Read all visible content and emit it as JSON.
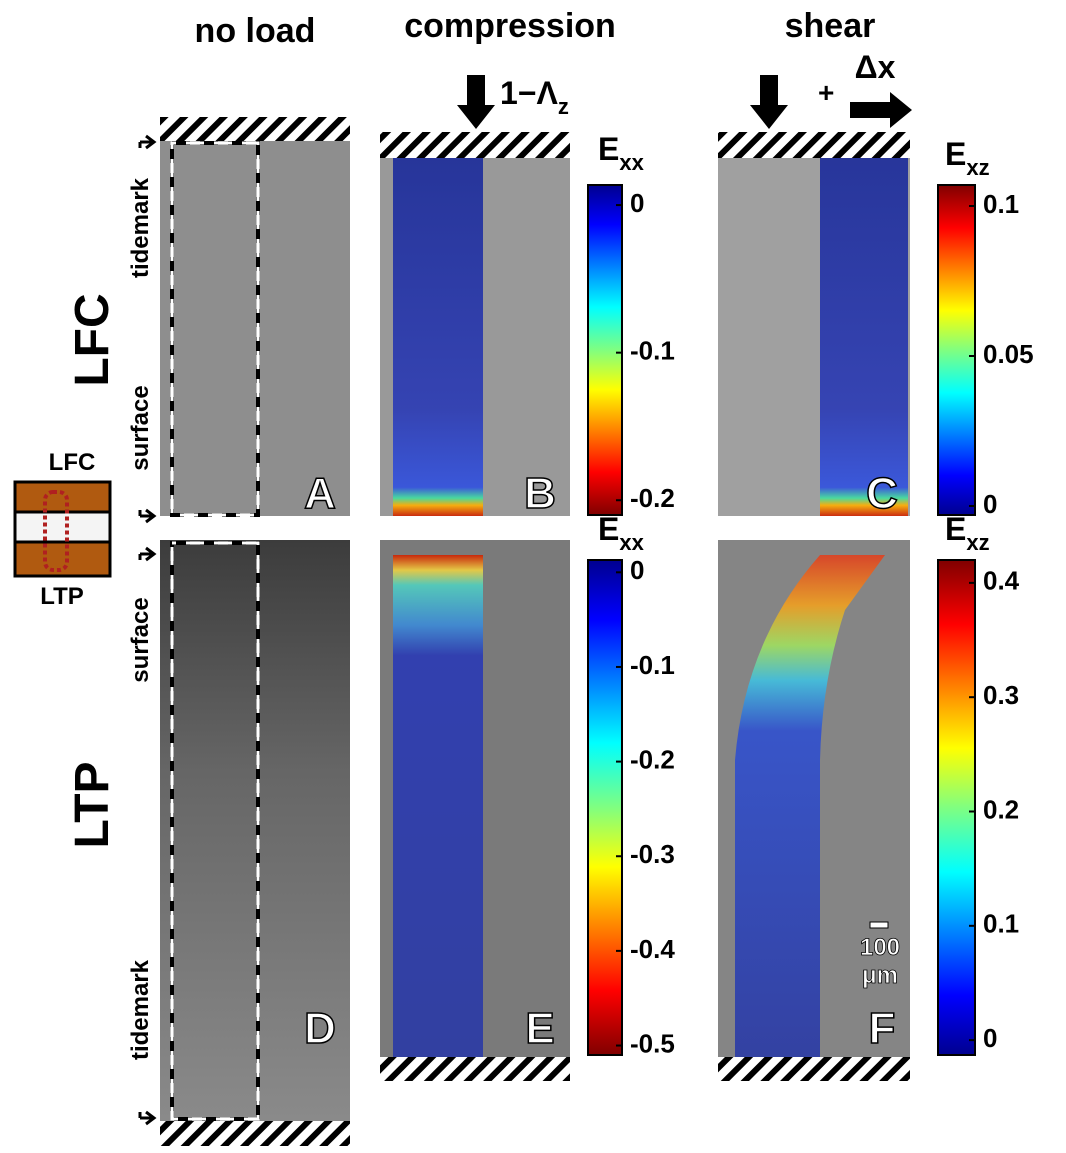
{
  "columns": [
    "no load",
    "compression",
    "shear"
  ],
  "rows": [
    "LFC",
    "LTP"
  ],
  "zone_labels": [
    "tidemark",
    "surface",
    "surface",
    "tidemark"
  ],
  "inset": [
    "LFC",
    "LTP"
  ],
  "panels": [
    "A",
    "B",
    "C",
    "D",
    "E",
    "F"
  ],
  "load": {
    "compression": {
      "base": "1−Λ",
      "sub": "z"
    },
    "shear_plus": "+",
    "shear_shift": "Δx"
  },
  "colorbars": [
    {
      "title": {
        "base": "E",
        "sub": "xx"
      },
      "ylim": [
        -0.21,
        0.0136
      ],
      "yticks": [
        0,
        -0.1,
        -0.2
      ]
    },
    {
      "title": {
        "base": "E",
        "sub": "xz"
      },
      "ylim": [
        -0.003,
        0.107
      ],
      "yticks": [
        0.1,
        0.05,
        0
      ]
    },
    {
      "title": {
        "base": "E",
        "sub": "xx"
      },
      "ylim": [
        -0.51,
        0.013
      ],
      "yticks": [
        0,
        -0.1,
        -0.2,
        -0.3,
        -0.4,
        -0.5
      ]
    },
    {
      "title": {
        "base": "E",
        "sub": "xz"
      },
      "ylim": [
        -0.013,
        0.42
      ],
      "yticks": [
        0.4,
        0.3,
        0.2,
        0.1,
        0
      ]
    }
  ],
  "scale_bar": [
    "100",
    "μm"
  ]
}
